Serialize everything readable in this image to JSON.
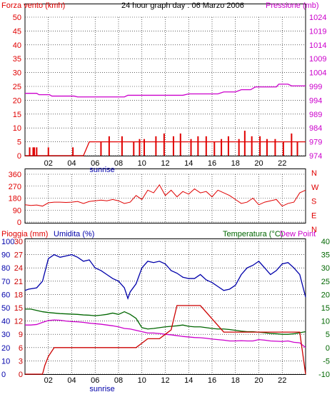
{
  "title": "24 hour graph day : 06 Marzo 2006",
  "colors": {
    "wind": "#e00000",
    "pressure": "#cc00cc",
    "direction": "#e00000",
    "humidity": "#0000aa",
    "rain": "#cc0000",
    "temperature": "#006600",
    "dewpoint": "#cc00cc",
    "grid": "#000000",
    "green_axis": "#006600",
    "blue_axis": "#0000aa",
    "wind_green": "#008800",
    "wind_blue": "#0000dd"
  },
  "chart_data": [
    {
      "type": "line",
      "name": "wind-pressure",
      "left_label": "Forza vento (kmh)",
      "right_label": "Pressione (mb)",
      "x_ticks": [
        "02",
        "04",
        "06",
        "08",
        "10",
        "12",
        "14",
        "16",
        "18",
        "20",
        "22"
      ],
      "sunrise_label": "sunrise",
      "x_range": [
        0,
        24
      ],
      "sunrise_x": 6.6,
      "y_left_ticks": [
        "0",
        "5",
        "10",
        "15",
        "20",
        "25",
        "30",
        "35",
        "40",
        "45",
        "50"
      ],
      "y_left_range": [
        0,
        50
      ],
      "y_right_ticks": [
        "974",
        "979",
        "984",
        "989",
        "994",
        "999",
        "1004",
        "1009",
        "1014",
        "1019",
        "1024"
      ],
      "y_right_range": [
        974,
        1024
      ],
      "pressure": {
        "x": [
          0,
          1.0,
          1.2,
          2.1,
          2.3,
          4.2,
          4.5,
          8.5,
          8.8,
          13.5,
          14.0,
          16.5,
          17.0,
          18.0,
          18.5,
          19.3,
          19.7,
          21.5,
          21.7,
          22.5,
          22.8,
          24
        ],
        "y": [
          996.5,
          996.5,
          996.0,
          996.0,
          995.5,
          995.5,
          995.2,
          995.2,
          995.8,
          995.8,
          996.3,
          996.3,
          997.0,
          997.0,
          997.8,
          997.8,
          998.8,
          998.8,
          999.8,
          999.8,
          999.2,
          999.2
        ]
      },
      "wind_avg": {
        "x": [
          0,
          0.5,
          1.0,
          1.5,
          2.0,
          2.5,
          3.0,
          3.5,
          4.0,
          4.5,
          5.0,
          5.5,
          6.0,
          6.5,
          7.0,
          7.5,
          8.0,
          8.5,
          9.0,
          9.5,
          10.0,
          10.5,
          11.0,
          11.5,
          12.0,
          12.5,
          13.0,
          13.5,
          14.0,
          14.5,
          15.0,
          15.5,
          16.0,
          16.5,
          17.0,
          17.5,
          18.0,
          18.5,
          19.0,
          19.5,
          20.0,
          20.5,
          21.0,
          21.5,
          22.0,
          22.5,
          23.0,
          23.5,
          24
        ],
        "y": [
          0,
          0,
          0,
          0,
          0,
          0,
          0,
          0,
          0,
          0,
          0,
          5,
          5,
          5,
          5,
          5,
          5,
          5,
          5,
          5,
          5,
          5,
          5,
          5,
          5,
          5,
          5,
          5,
          5,
          5,
          5,
          5,
          5,
          5,
          5,
          5,
          5,
          5,
          5,
          5,
          5,
          5,
          5,
          5,
          5,
          5,
          5,
          5,
          5
        ]
      },
      "wind_gust": {
        "x": [
          0.4,
          0.7,
          0.8,
          1.0,
          2.0,
          4.1,
          6.5,
          7.2,
          8.3,
          9.3,
          9.8,
          10.2,
          11.2,
          11.9,
          12.7,
          13.3,
          14.2,
          14.8,
          15.5,
          16.2,
          16.8,
          17.4,
          18.3,
          18.8,
          19.4,
          20.1,
          20.7,
          21.4,
          22.1,
          22.8,
          23.3
        ],
        "y": [
          3,
          3,
          3,
          3,
          3,
          3,
          5,
          7,
          7,
          5,
          6,
          6,
          7,
          8,
          7,
          8,
          6,
          7,
          7,
          5,
          6,
          7,
          6,
          9,
          7,
          7,
          6,
          6,
          5,
          8,
          5
        ]
      }
    },
    {
      "type": "scatter",
      "name": "wind-direction",
      "y_left_ticks": [
        "0",
        "90",
        "180",
        "270",
        "360"
      ],
      "y_left_range": [
        0,
        360
      ],
      "y_right_ticks": [
        "N",
        "E",
        "S",
        "W",
        "N"
      ],
      "direction": {
        "x": [
          0,
          0.5,
          1.0,
          1.5,
          2.0,
          2.5,
          3.0,
          3.5,
          4.0,
          4.5,
          5.0,
          5.5,
          6.0,
          6.5,
          7.0,
          7.5,
          8.0,
          8.5,
          9.0,
          9.5,
          10.0,
          10.5,
          11.0,
          11.5,
          12.0,
          12.5,
          13.0,
          13.5,
          14.0,
          14.5,
          15.0,
          15.5,
          16.0,
          16.5,
          17.0,
          17.5,
          18.0,
          18.5,
          19.0,
          19.5,
          20.0,
          20.5,
          21.0,
          21.5,
          22.0,
          22.5,
          23.0,
          23.5,
          24
        ],
        "y": [
          130,
          125,
          128,
          120,
          145,
          150,
          150,
          148,
          150,
          155,
          140,
          155,
          160,
          165,
          160,
          170,
          160,
          140,
          150,
          200,
          170,
          240,
          220,
          280,
          200,
          240,
          190,
          230,
          210,
          250,
          220,
          230,
          190,
          240,
          220,
          200,
          170,
          140,
          150,
          180,
          130,
          150,
          160,
          170,
          120,
          140,
          150,
          220,
          240
        ]
      }
    },
    {
      "type": "line",
      "name": "rain-humidity-temperature",
      "left_label_rain": "Pioggia (mm)",
      "left_label_humidity": "Umidita (%)",
      "right_label_temp": "Temperatura (°C)",
      "right_label_dew": "Dew Point",
      "y_rain_ticks": [
        "0",
        "3",
        "6",
        "9",
        "12",
        "15",
        "18",
        "21",
        "24",
        "27",
        "30"
      ],
      "y_rain_range": [
        0,
        30
      ],
      "y_humidity_ticks": [
        "0",
        "10",
        "20",
        "30",
        "40",
        "50",
        "60",
        "70",
        "80",
        "90",
        "100"
      ],
      "y_humidity_range": [
        0,
        100
      ],
      "y_temp_ticks": [
        "-10",
        "-5",
        "0",
        "5",
        "10",
        "15",
        "20",
        "25",
        "30",
        "35",
        "40"
      ],
      "y_temp_range": [
        -10,
        40
      ],
      "humidity": {
        "x": [
          0,
          0.3,
          1.0,
          1.5,
          2.0,
          2.5,
          3.0,
          3.5,
          4.0,
          4.5,
          5.0,
          5.5,
          6.0,
          6.5,
          7.0,
          7.5,
          8.0,
          8.5,
          8.8,
          9.0,
          9.5,
          10.0,
          10.5,
          11.0,
          11.5,
          12.0,
          12.5,
          13.0,
          13.5,
          14.0,
          14.5,
          15.0,
          15.5,
          16.0,
          16.5,
          17.0,
          17.5,
          18.0,
          18.5,
          19.0,
          19.5,
          20.0,
          20.5,
          21.0,
          21.5,
          22.0,
          22.5,
          23.0,
          23.5,
          24
        ],
        "y": [
          63,
          64,
          65,
          70,
          87,
          90,
          88,
          89,
          90,
          88,
          85,
          86,
          80,
          78,
          75,
          72,
          70,
          65,
          57,
          62,
          68,
          80,
          85,
          84,
          85,
          83,
          78,
          76,
          73,
          72,
          72,
          75,
          71,
          69,
          66,
          63,
          64,
          67,
          75,
          80,
          82,
          85,
          80,
          75,
          78,
          83,
          84,
          80,
          75,
          58
        ]
      },
      "rain": {
        "x": [
          0,
          1.0,
          1.5,
          1.7,
          2.0,
          2.5,
          9.5,
          10.0,
          10.5,
          11.0,
          11.5,
          12.0,
          12.5,
          13.0,
          15.0,
          17.0,
          23.5,
          24
        ],
        "y": [
          0,
          0,
          0,
          2,
          4,
          6,
          6,
          7,
          8,
          8,
          8,
          9,
          10,
          15.5,
          15.5,
          9.5,
          9.5,
          0
        ]
      },
      "temperature": {
        "x": [
          0,
          0.5,
          1.0,
          1.5,
          2.0,
          2.5,
          3.0,
          3.5,
          4.0,
          4.5,
          5.0,
          5.5,
          6.0,
          6.5,
          7.0,
          7.5,
          8.0,
          8.5,
          9.0,
          9.5,
          10.0,
          10.5,
          11.0,
          11.5,
          12.0,
          12.5,
          13.0,
          13.5,
          14.0,
          14.5,
          15.0,
          15.5,
          16.0,
          16.5,
          17.0,
          17.5,
          18.0,
          18.5,
          19.0,
          19.5,
          20.0,
          20.5,
          21.0,
          21.5,
          22.0,
          22.5,
          23.0,
          23.5,
          24
        ],
        "y": [
          14.5,
          14.5,
          14.0,
          13.5,
          13.2,
          13.0,
          12.8,
          12.7,
          12.6,
          12.5,
          12.3,
          12.2,
          12.0,
          12.2,
          12.5,
          13.0,
          12.5,
          13.5,
          12.5,
          11.0,
          7.5,
          7.0,
          7.2,
          7.5,
          7.8,
          8.0,
          8.2,
          8.5,
          8.0,
          7.8,
          7.8,
          7.5,
          7.2,
          7.0,
          7.0,
          6.8,
          6.5,
          6.2,
          6.0,
          6.0,
          5.8,
          5.6,
          5.3,
          5.2,
          5.0,
          5.0,
          5.2,
          5.6,
          6.0
        ]
      },
      "dewpoint": {
        "x": [
          0,
          0.5,
          1.0,
          1.5,
          2.0,
          2.5,
          3.0,
          3.5,
          4.0,
          4.5,
          5.0,
          5.5,
          6.0,
          6.5,
          7.0,
          7.5,
          8.0,
          8.5,
          9.0,
          9.5,
          10.0,
          10.5,
          11.0,
          11.5,
          12.0,
          12.5,
          13.0,
          13.5,
          14.0,
          14.5,
          15.0,
          15.5,
          16.0,
          16.5,
          17.0,
          17.5,
          18.0,
          18.5,
          19.0,
          19.5,
          20.0,
          20.5,
          21.0,
          21.5,
          22.0,
          22.5,
          23.0,
          23.5,
          24
        ],
        "y": [
          8.5,
          8.5,
          8.7,
          9.5,
          10.2,
          10.4,
          10.3,
          10.0,
          9.8,
          9.7,
          9.5,
          9.2,
          9.0,
          8.8,
          8.5,
          8.2,
          7.8,
          7.2,
          7.0,
          6.5,
          6.0,
          5.5,
          5.5,
          5.3,
          5.0,
          4.8,
          4.5,
          4.2,
          4.0,
          3.8,
          3.7,
          3.5,
          3.2,
          3.0,
          2.8,
          2.5,
          2.5,
          2.6,
          2.5,
          2.5,
          3.0,
          2.8,
          2.5,
          2.4,
          2.3,
          2.5,
          2.0,
          1.8,
          0.0
        ]
      }
    }
  ]
}
